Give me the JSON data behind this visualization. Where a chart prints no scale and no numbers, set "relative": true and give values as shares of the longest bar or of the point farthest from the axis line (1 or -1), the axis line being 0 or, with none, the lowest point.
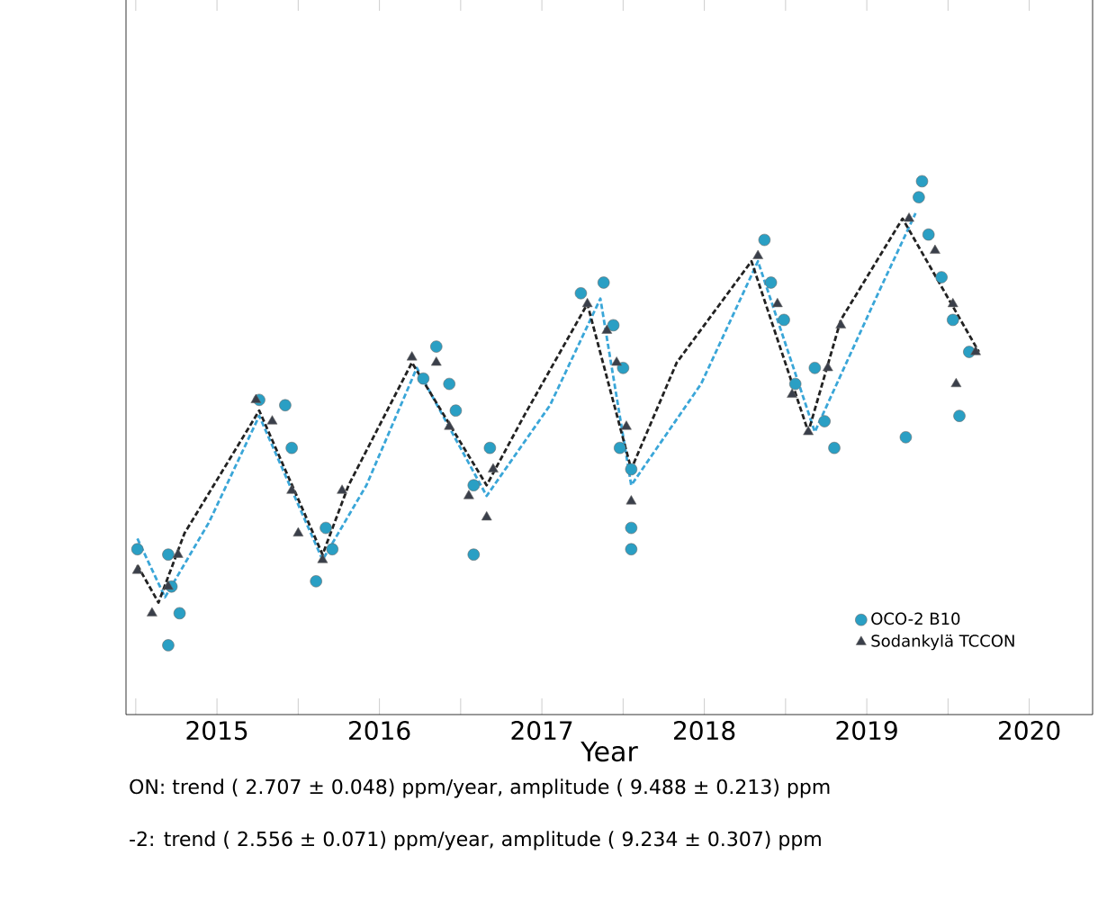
{
  "chart_data": {
    "type": "scatter",
    "relative": true,
    "xlabel": "Year",
    "xlim": [
      2014.44,
      2020.39
    ],
    "xticks": [
      {
        "value": 2014.5,
        "label": null
      },
      2015,
      {
        "value": 2015.5,
        "label": null
      },
      2016,
      {
        "value": 2016.5,
        "label": null
      },
      2017,
      {
        "value": 2017.5,
        "label": null
      },
      2018,
      {
        "value": 2018.5,
        "label": null
      },
      2019,
      {
        "value": 2019.5,
        "label": null
      },
      2020
    ],
    "legend": "bottom right",
    "grid": false,
    "annotations": [
      "ON: trend ( 2.707 ± 0.048) ppm/year, amplitude ( 9.488 ± 0.213) ppm",
      "-2: trend ( 2.556 ± 0.071) ppm/year, amplitude ( 9.234 ± 0.307) ppm"
    ],
    "series": [
      {
        "type": "line",
        "color": "#222222",
        "line_style": "dashed",
        "marker": "none",
        "x": [
          2014.51,
          2014.64,
          2014.8,
          2015.26,
          2015.65,
          2015.81,
          2016.2,
          2016.66,
          2016.89,
          2017.28,
          2017.55,
          2017.83,
          2018.29,
          2018.64,
          2018.84,
          2019.22,
          2019.69
        ],
        "values": [
          0.28,
          0.21,
          0.34,
          0.57,
          0.3,
          0.43,
          0.66,
          0.43,
          0.56,
          0.77,
          0.46,
          0.66,
          0.85,
          0.53,
          0.74,
          0.93,
          0.68
        ]
      },
      {
        "type": "line",
        "color": "#3aa6d8",
        "line_style": "dashed",
        "marker": "none",
        "x": [
          2014.51,
          2014.68,
          2014.95,
          2015.26,
          2015.65,
          2015.92,
          2016.23,
          2016.66,
          2017.05,
          2017.36,
          2017.55,
          2017.98,
          2018.33,
          2018.68,
          2019.07,
          2019.3
        ],
        "values": [
          0.33,
          0.22,
          0.36,
          0.56,
          0.29,
          0.43,
          0.65,
          0.41,
          0.58,
          0.78,
          0.43,
          0.62,
          0.85,
          0.53,
          0.79,
          0.94
        ]
      },
      {
        "name": "Sodankylä TCCON",
        "color": "#3a3f4a",
        "marker": "triangle",
        "x": [
          2014.51,
          2014.6,
          2014.7,
          2014.76,
          2015.24,
          2015.34,
          2015.46,
          2015.5,
          2015.65,
          2015.77,
          2016.2,
          2016.35,
          2016.43,
          2016.55,
          2016.66,
          2016.7,
          2017.28,
          2017.4,
          2017.46,
          2017.52,
          2017.55,
          2018.33,
          2018.45,
          2018.54,
          2018.64,
          2018.76,
          2018.84,
          2019.26,
          2019.42,
          2019.53,
          2019.55,
          2019.67
        ],
        "values": [
          0.27,
          0.19,
          0.24,
          0.3,
          0.59,
          0.55,
          0.42,
          0.34,
          0.29,
          0.42,
          0.67,
          0.66,
          0.54,
          0.41,
          0.37,
          0.46,
          0.77,
          0.72,
          0.66,
          0.54,
          0.4,
          0.86,
          0.77,
          0.6,
          0.53,
          0.65,
          0.73,
          0.93,
          0.87,
          0.77,
          0.62,
          0.68
        ]
      },
      {
        "name": "OCO-2 B10",
        "color": "#2a9fc4",
        "marker": "circle",
        "x": [
          2014.51,
          2014.7,
          2014.72,
          2014.7,
          2014.77,
          2015.26,
          2015.42,
          2015.46,
          2015.61,
          2015.67,
          2015.71,
          2016.27,
          2016.35,
          2016.43,
          2016.47,
          2016.58,
          2016.58,
          2016.68,
          2017.24,
          2017.38,
          2017.44,
          2017.5,
          2017.48,
          2017.55,
          2017.55,
          2017.55,
          2018.37,
          2018.41,
          2018.49,
          2018.56,
          2018.68,
          2018.74,
          2018.8,
          2019.24,
          2019.34,
          2019.32,
          2019.38,
          2019.46,
          2019.53,
          2019.57,
          2019.63
        ],
        "values": [
          0.31,
          0.3,
          0.24,
          0.13,
          0.19,
          0.59,
          0.58,
          0.5,
          0.25,
          0.35,
          0.31,
          0.63,
          0.69,
          0.62,
          0.57,
          0.3,
          0.43,
          0.5,
          0.79,
          0.81,
          0.73,
          0.65,
          0.5,
          0.46,
          0.35,
          0.31,
          0.89,
          0.81,
          0.74,
          0.62,
          0.65,
          0.55,
          0.5,
          0.52,
          1.0,
          0.97,
          0.9,
          0.82,
          0.74,
          0.56,
          0.68
        ]
      }
    ]
  }
}
